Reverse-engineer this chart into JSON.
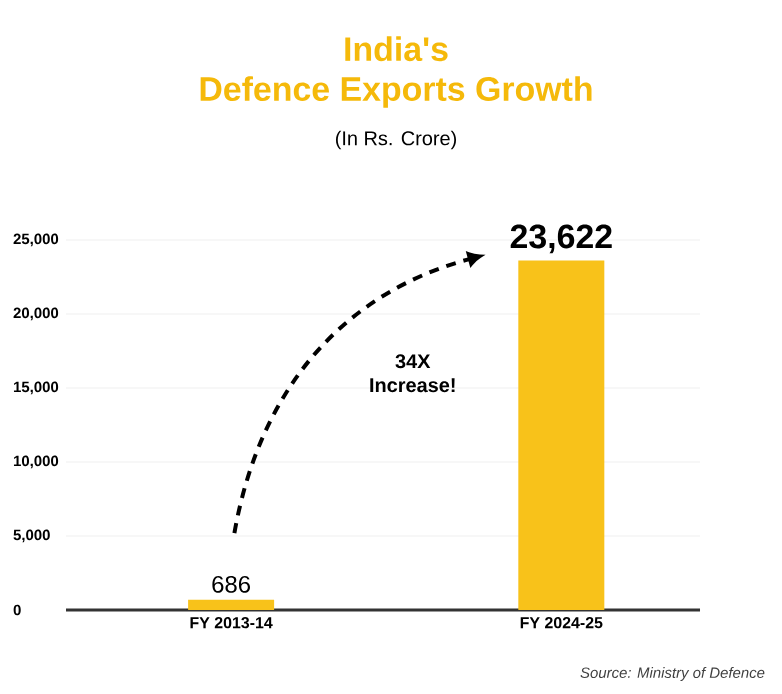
{
  "chart_data": {
    "type": "bar",
    "title": "India's\nDefence Exports Growth",
    "subtitle": "(In Rs. Crore)",
    "categories": [
      "FY 2013-14",
      "FY 2024-25"
    ],
    "values": [
      686,
      23622
    ],
    "value_labels": [
      "686",
      "23,622"
    ],
    "color": "#f8c21a",
    "ylim": [
      0,
      25000
    ],
    "yticks": [
      0,
      {
        "value": 5000,
        "label": "5,000"
      },
      {
        "value": 10000,
        "label": "10,000"
      },
      {
        "value": 15000,
        "label": "15,000"
      },
      {
        "value": 20000,
        "label": "20,000"
      },
      {
        "value": 25000,
        "label": "25,000"
      }
    ],
    "grid": "y",
    "annotations": [
      "34X Increase!",
      "Source: Ministry of Defence"
    ]
  }
}
